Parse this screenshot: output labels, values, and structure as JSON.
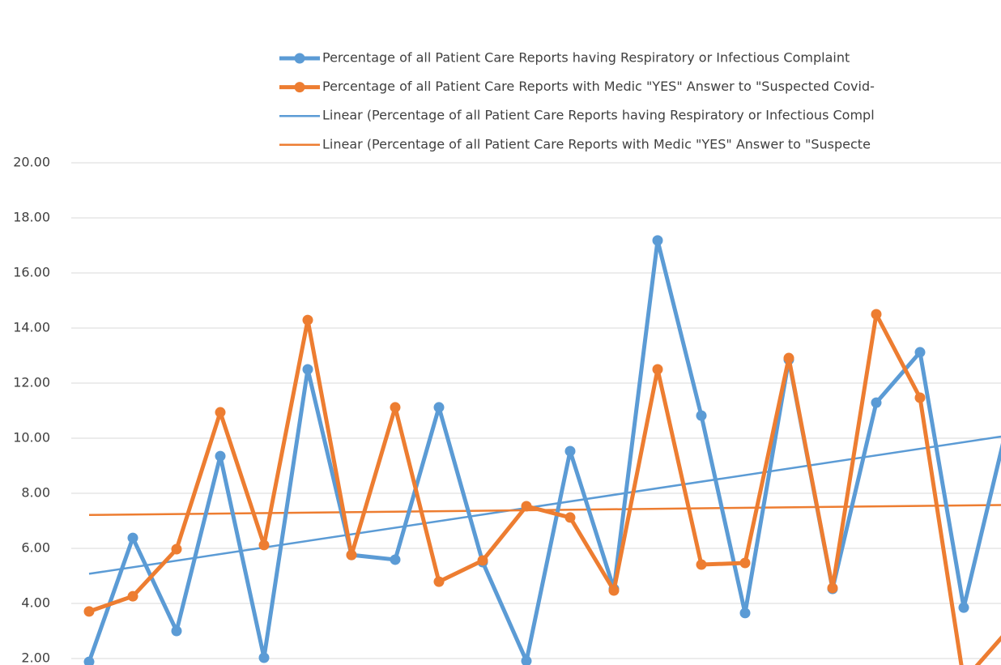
{
  "chart_data": {
    "type": "line",
    "categories": [
      null,
      null,
      null,
      null,
      null,
      null,
      null,
      null,
      null,
      null,
      null,
      null,
      null,
      null,
      null,
      null,
      null,
      null,
      null,
      null,
      null,
      null
    ],
    "series": [
      {
        "name": "Percentage of all Patient Care Reports having Respiratory or Infectious Complaint",
        "color": "#5b9bd5",
        "values": [
          1.88,
          6.38,
          3.0,
          9.35,
          2.03,
          12.5,
          5.76,
          5.59,
          11.12,
          5.5,
          1.91,
          9.53,
          4.53,
          17.18,
          10.82,
          3.65,
          12.85,
          4.53,
          11.29,
          13.12,
          3.85,
          10.5
        ],
        "trendline": {
          "type": "linear",
          "name": "Linear (Percentage of all Patient Care Reports having Respiratory or Infectious Compl"
        }
      },
      {
        "name": "Percentage of all Patient Care Reports with Medic \"YES\" Answer to \"Suspected Covid-",
        "color": "#ed7d31",
        "values": [
          3.71,
          4.26,
          5.97,
          10.94,
          6.12,
          14.29,
          5.76,
          11.12,
          4.79,
          5.56,
          7.53,
          7.12,
          4.47,
          12.5,
          5.41,
          5.47,
          12.91,
          4.56,
          14.5,
          11.47,
          1.2,
          3.0
        ],
        "trendline": {
          "type": "linear",
          "name": "Linear (Percentage of all Patient Care Reports with Medic \"YES\" Answer to \"Suspecte"
        }
      }
    ],
    "ylim": [
      0,
      20
    ],
    "yticks": [
      {
        "value": 2,
        "label": "2.00"
      },
      {
        "value": 4,
        "label": "4.00"
      },
      {
        "value": 6,
        "label": "6.00"
      },
      {
        "value": 8,
        "label": "8.00"
      },
      {
        "value": 10,
        "label": "10.00"
      },
      {
        "value": 12,
        "label": "12.00"
      },
      {
        "value": 14,
        "label": "14.00"
      },
      {
        "value": 16,
        "label": "16.00"
      },
      {
        "value": 18,
        "label": "18.00"
      },
      {
        "value": 20,
        "label": "20.00"
      }
    ],
    "grid": true,
    "legend": "top"
  }
}
